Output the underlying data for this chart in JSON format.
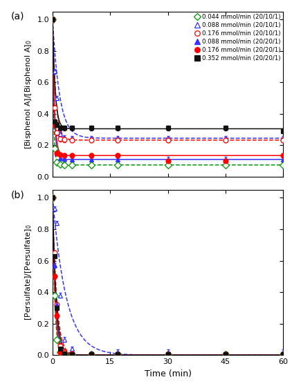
{
  "legend_labels": [
    "0.044 mmol/min (20/10/1)",
    "0.088 mmol/min (20/10/1)",
    "0.176 mmol/min (20/10/1)",
    "0.088 mmol/min (20/20/1)",
    "0.176 mmol/min (20/20/1)",
    "0.352 mmol/min (20/20/1)"
  ],
  "colors": [
    "#009900",
    "#3333FF",
    "#FF0000",
    "#3333FF",
    "#FF0000",
    "#111111"
  ],
  "markers": [
    "D",
    "^",
    "o",
    "^",
    "o",
    "s"
  ],
  "fillstyles": [
    "none",
    "none",
    "none",
    "full",
    "full",
    "full"
  ],
  "linestyles": [
    "--",
    "--",
    "--",
    "-",
    "-",
    "-"
  ],
  "panel_a_label": "(a)",
  "panel_b_label": "(b)",
  "ylabel_a": "[Bisphenol A]/[Bisphenol A]$_0$",
  "ylabel_b": "[Persulfate]/[Persulfate]$_0$",
  "xlabel": "Time (min)",
  "time_points_a": [
    0,
    0.5,
    1,
    2,
    3,
    5,
    10,
    17,
    30,
    45,
    60
  ],
  "bpa_data": [
    [
      1.0,
      0.18,
      0.09,
      0.08,
      0.075,
      0.075,
      0.075,
      0.075,
      0.075,
      0.075,
      0.075
    ],
    [
      1.0,
      0.67,
      0.5,
      0.27,
      0.25,
      0.245,
      0.245,
      0.245,
      0.245,
      0.245,
      0.245
    ],
    [
      1.0,
      0.44,
      0.28,
      0.24,
      0.235,
      0.233,
      0.233,
      0.233,
      0.233,
      0.233,
      0.233
    ],
    [
      1.0,
      0.33,
      0.15,
      0.12,
      0.112,
      0.11,
      0.11,
      0.11,
      0.11,
      0.11,
      0.11
    ],
    [
      1.0,
      0.33,
      0.15,
      0.14,
      0.135,
      0.135,
      0.135,
      0.135,
      0.1,
      0.1,
      0.135
    ],
    [
      1.0,
      0.35,
      0.33,
      0.31,
      0.31,
      0.31,
      0.31,
      0.31,
      0.31,
      0.31,
      0.29
    ]
  ],
  "bpa_plateau": [
    0.075,
    0.245,
    0.233,
    0.11,
    0.135,
    0.305
  ],
  "bpa_k": [
    3.5,
    0.55,
    1.2,
    2.2,
    2.0,
    1.5
  ],
  "time_points_b": [
    0,
    0.5,
    1,
    2,
    3,
    5,
    10,
    17,
    30,
    45,
    60
  ],
  "ps_data": [
    [
      1.0,
      0.38,
      0.1,
      0.02,
      0.01,
      0.005,
      0.005,
      0.005,
      0.005,
      0.005,
      0.005
    ],
    [
      1.0,
      0.93,
      0.84,
      0.38,
      0.1,
      0.04,
      0.01,
      0.02,
      0.02,
      0.01,
      0.02
    ],
    [
      1.0,
      0.65,
      0.32,
      0.06,
      0.02,
      0.01,
      0.005,
      0.005,
      0.005,
      0.005,
      0.005
    ],
    [
      1.0,
      0.57,
      0.32,
      0.04,
      0.01,
      0.005,
      0.005,
      0.005,
      0.005,
      0.005,
      0.005
    ],
    [
      1.0,
      0.5,
      0.25,
      0.02,
      0.01,
      0.005,
      0.005,
      0.005,
      0.005,
      0.005,
      0.005
    ],
    [
      1.0,
      0.63,
      0.3,
      0.04,
      0.01,
      0.005,
      0.005,
      0.005,
      0.005,
      0.005,
      0.005
    ]
  ],
  "ps_k": [
    1.8,
    0.28,
    0.95,
    1.3,
    1.5,
    1.1
  ],
  "xlim": [
    0,
    60
  ],
  "xticks": [
    0,
    15,
    30,
    45,
    60
  ],
  "ylim_a": [
    0.0,
    1.05
  ],
  "ylim_b": [
    0.0,
    1.05
  ],
  "yticks_a": [
    0.0,
    0.2,
    0.4,
    0.6,
    0.8,
    1.0
  ],
  "yticks_b": [
    0.0,
    0.2,
    0.4,
    0.6,
    0.8,
    1.0
  ]
}
